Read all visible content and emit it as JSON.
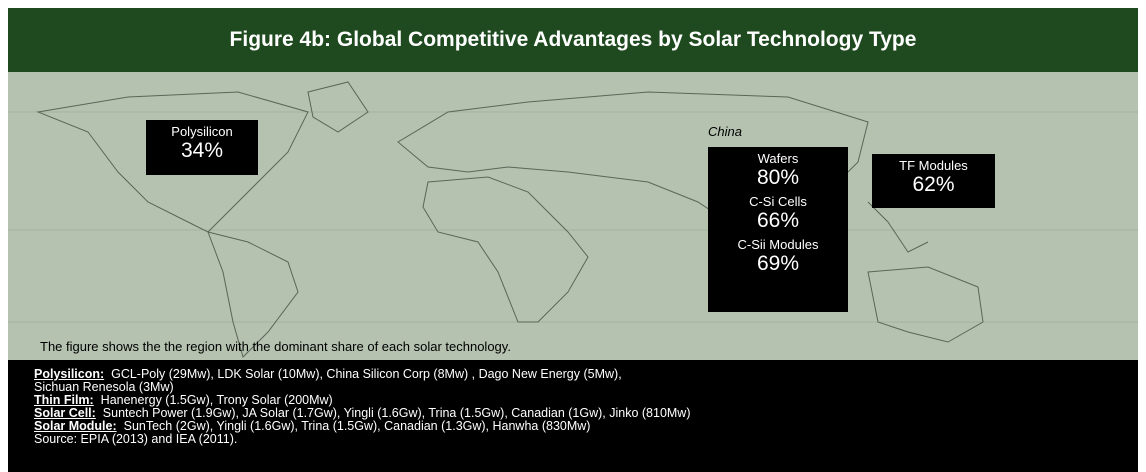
{
  "header": {
    "title": "Figure 4b: Global Competitive Advantages by Solar Technology Type"
  },
  "map": {
    "polysilicon": {
      "name": "Polysilicon",
      "value": "34%"
    },
    "region": "China",
    "china": [
      {
        "name": "Wafers",
        "value": "80%"
      },
      {
        "name": "C-Si Cells",
        "value": "66%"
      },
      {
        "name": "C-Sii Modules",
        "value": "69%"
      }
    ],
    "tf": {
      "name": "TF Modules",
      "value": "62%"
    },
    "caption": "The figure shows the the region with the dominant share of each solar technology."
  },
  "footer": {
    "items": [
      {
        "label": "Polysilicon:",
        "lines": [
          "GCL-Poly (29Mw), LDK Solar (10Mw), China Silicon Corp (8Mw) , Dago New Energy (5Mw),",
          "Sichuan Renesola (3Mw)"
        ]
      },
      {
        "label": "Thin Film:",
        "lines": [
          "Hanenergy (1.5Gw), Trony Solar (200Mw)"
        ]
      },
      {
        "label": "Solar Cell:",
        "lines": [
          "Suntech Power (1.9Gw), JA Solar (1.7Gw), Yingli (1.6Gw), Trina (1.5Gw), Canadian (1Gw), Jinko (810Mw)"
        ]
      },
      {
        "label": "Solar Module:",
        "lines": [
          "SunTech (2Gw), Yingli (1.6Gw), Trina (1.5Gw), Canadian (1.3Gw), Hanwha (830Mw)"
        ]
      }
    ],
    "source": "Source: EPIA (2013) and IEA (2011)."
  }
}
